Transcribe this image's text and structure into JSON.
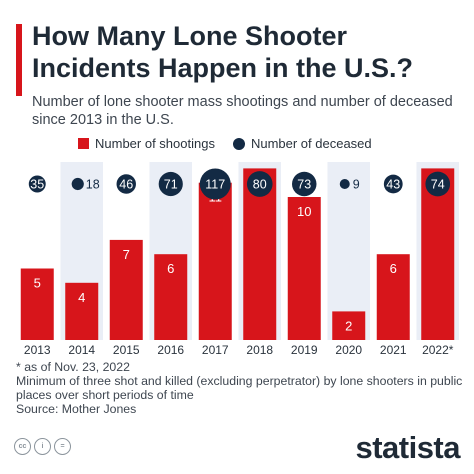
{
  "header": {
    "title": "How Many Lone Shooter Incidents Happen in the U.S.?",
    "subtitle": "Number of lone shooter mass shootings and number of deceased since 2013 in the U.S."
  },
  "legend": {
    "shootings": "Number of shootings",
    "deceased": "Number of deceased"
  },
  "chart_data": {
    "type": "bar",
    "categories": [
      "2013",
      "2014",
      "2015",
      "2016",
      "2017",
      "2018",
      "2019",
      "2020",
      "2021",
      "2022*"
    ],
    "series": [
      {
        "name": "Number of shootings",
        "type": "bar",
        "color": "#d7151b",
        "values": [
          5,
          4,
          7,
          6,
          11,
          12,
          10,
          2,
          6,
          12
        ]
      },
      {
        "name": "Number of deceased",
        "type": "bubble",
        "color": "#132a44",
        "values": [
          35,
          18,
          46,
          71,
          117,
          80,
          73,
          9,
          43,
          74
        ]
      }
    ],
    "legend_position": "top",
    "alternating_column_shading": true
  },
  "notes": {
    "asterisk": "* as of Nov. 23, 2022",
    "definition": "Minimum of three shot and killed (excluding perpetrator) by lone shooters in public places over short periods of time",
    "source": "Source: Mother Jones"
  },
  "footer": {
    "brand": "statista",
    "icons": [
      "cc-icon",
      "info-icon",
      "equals-icon"
    ]
  },
  "colors": {
    "accent": "#d7151b",
    "navy": "#132a44",
    "shade": "#eaeef6"
  }
}
